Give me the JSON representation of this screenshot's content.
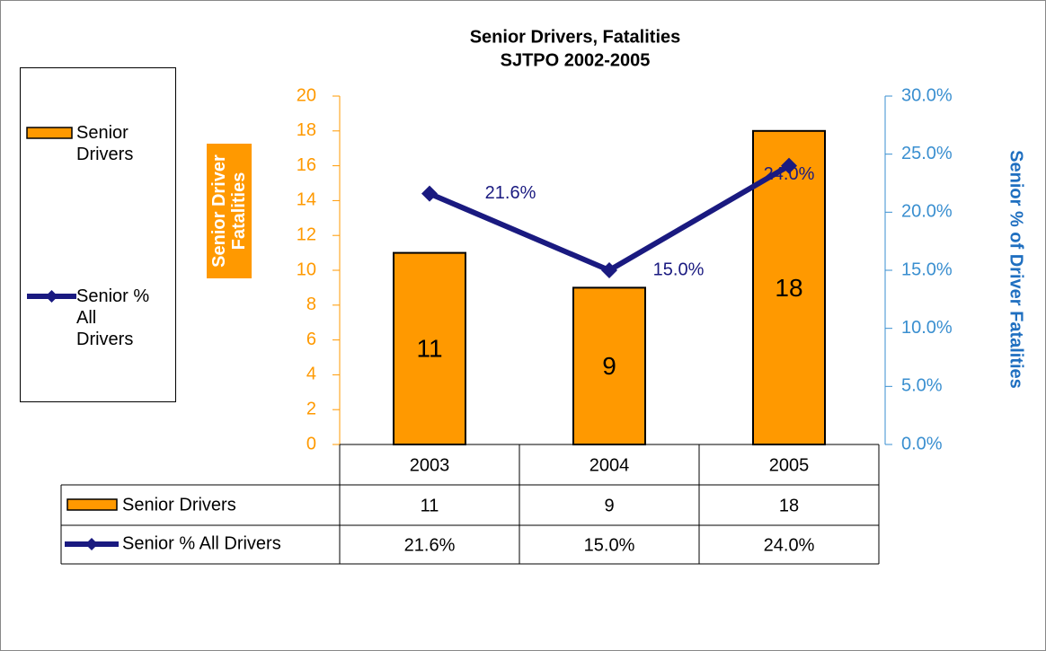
{
  "chart_data": {
    "type": "bar",
    "title": "Senior Drivers, Fatalities",
    "subtitle": "SJTPO 2002-2005",
    "ylabel": "Senior Driver Fatalities",
    "y2label": "Senior % of Driver Fatalities",
    "categories": [
      "2003",
      "2004",
      "2005"
    ],
    "series": [
      {
        "name": "Senior Drivers",
        "type": "bar",
        "color": "#ff9900",
        "values": [
          11,
          9,
          18
        ]
      },
      {
        "name": "Senior % All Drivers",
        "type": "line",
        "axis": "y2",
        "color": "#1a1a80",
        "values": [
          21.6,
          15.0,
          24.0
        ],
        "value_labels": [
          "21.6%",
          "15.0%",
          "24.0%"
        ]
      }
    ],
    "ylim": [
      0,
      20
    ],
    "yticks": [
      0,
      2,
      4,
      6,
      8,
      10,
      12,
      14,
      16,
      18,
      20
    ],
    "y2lim": [
      0,
      30
    ],
    "y2ticks": [
      {
        "value": 0,
        "label": "0.0%"
      },
      {
        "value": 5,
        "label": "5.0%"
      },
      {
        "value": 10,
        "label": "10.0%"
      },
      {
        "value": 15,
        "label": "15.0%"
      },
      {
        "value": 20,
        "label": "20.0%"
      },
      {
        "value": 25,
        "label": "25.0%"
      },
      {
        "value": 30,
        "label": "30.0%"
      }
    ],
    "ytick_color": "#ff9900",
    "y2tick_color": "#3a8fd0",
    "y2label_color": "#1f6fc0",
    "legend": "left",
    "data_table": true
  }
}
